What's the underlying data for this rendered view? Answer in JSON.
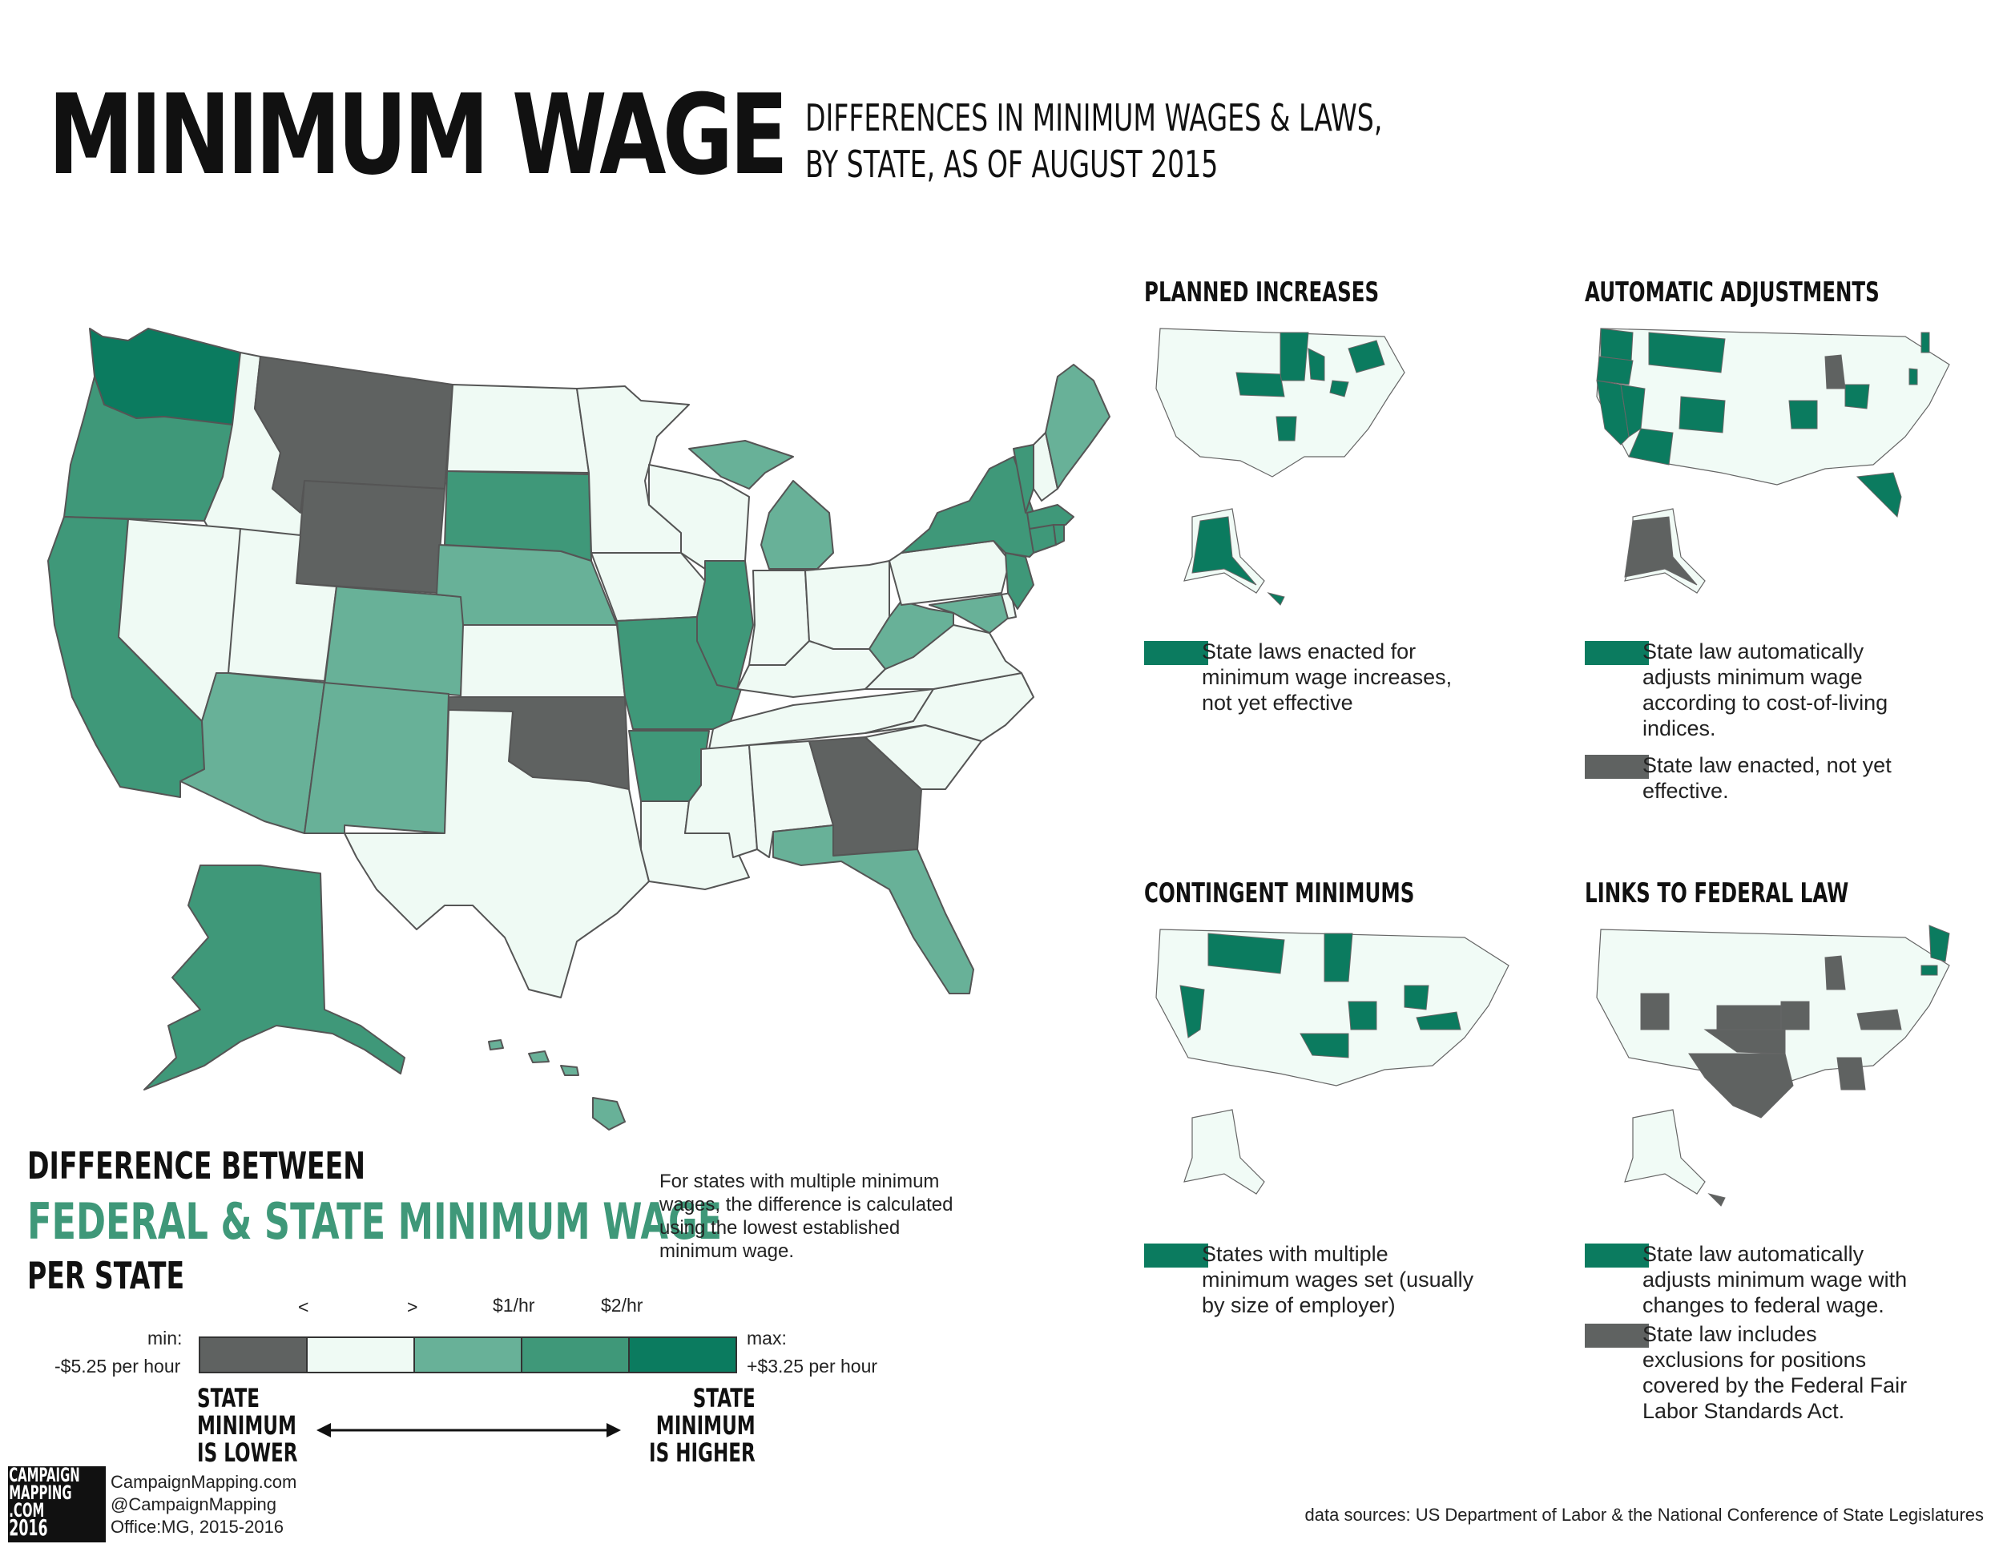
{
  "header": {
    "title": "MINIMUM WAGE",
    "subtitle_line1": "DIFFERENCES IN MINIMUM WAGES & LAWS,",
    "subtitle_line2": "BY STATE, AS OF AUGUST 2015"
  },
  "colors": {
    "lower": "#5f6261",
    "equal": "#effaf4",
    "plus_lt1": "#68b198",
    "plus_1to2": "#3f9879",
    "plus_gt2": "#0b7b5f",
    "neutral_map": "#f1fbf6",
    "border": "#555555"
  },
  "panels": [
    {
      "title": "PLANNED INCREASES",
      "legend": [
        {
          "color": "#0b7b5f",
          "lines": [
            "State laws enacted for",
            "minimum wage increases,",
            "not yet effective"
          ]
        }
      ]
    },
    {
      "title": "AUTOMATIC ADJUSTMENTS",
      "legend": [
        {
          "color": "#0b7b5f",
          "lines": [
            "State law automatically",
            "adjusts minimum wage",
            "according to cost-of-living",
            "indices."
          ]
        },
        {
          "color": "#5f6261",
          "lines": [
            "State law enacted, not yet",
            "effective."
          ]
        }
      ]
    },
    {
      "title": "CONTINGENT MINIMUMS",
      "legend": [
        {
          "color": "#0b7b5f",
          "lines": [
            "States with multiple",
            "minimum wages set (usually",
            "by size of employer)"
          ]
        }
      ]
    },
    {
      "title": "LINKS TO FEDERAL LAW",
      "legend": [
        {
          "color": "#0b7b5f",
          "lines": [
            "State law automatically",
            "adjusts minimum wage with",
            "changes to federal wage."
          ]
        },
        {
          "color": "#5f6261",
          "lines": [
            "State law includes",
            "exclusions for positions",
            "covered by the Federal Fair",
            "Labor Standards Act."
          ]
        }
      ]
    }
  ],
  "main_legend": {
    "heading1": "DIFFERENCE BETWEEN",
    "heading2": "FEDERAL & STATE MINIMUM WAGE",
    "heading3": "PER STATE",
    "note": [
      "For states with multiple minimum",
      "wages, the difference is calculated",
      "using the lowest established",
      "minimum wage."
    ],
    "tick_labels": [
      "<",
      ">",
      "$1/hr",
      "$2/hr"
    ],
    "min_label": "min:",
    "min_value": "-$5.25 per hour",
    "max_label": "max:",
    "max_value": "+$3.25 per hour",
    "left_caption": [
      "STATE",
      "MINIMUM",
      "IS LOWER"
    ],
    "right_caption": [
      "STATE",
      "MINIMUM",
      "IS HIGHER"
    ]
  },
  "footer": {
    "logo_lines": [
      "CAMPAIGN",
      "MAPPING",
      ".COM",
      "2016"
    ],
    "site": "CampaignMapping.com",
    "handle": "@CampaignMapping",
    "office": "Office:MG, 2015-2016",
    "sources": "data sources: US Department of Labor & the National Conference of State Legislatures"
  }
}
